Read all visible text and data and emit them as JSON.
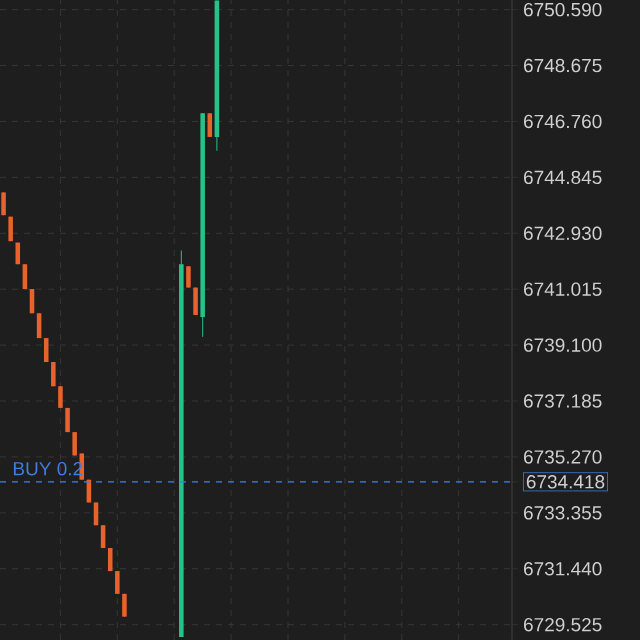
{
  "chart_data": {
    "type": "candlestick",
    "categories": [
      null,
      null,
      null,
      null,
      null,
      null,
      null,
      null,
      null,
      null,
      null,
      null,
      null,
      null,
      null,
      null,
      null,
      null,
      null,
      null,
      null,
      null,
      null,
      null,
      null,
      null,
      null,
      null,
      null,
      null,
      null,
      null,
      null,
      null,
      null,
      null,
      null,
      null,
      null,
      null,
      null,
      null,
      null,
      null,
      null,
      null,
      null,
      null,
      null,
      null,
      null,
      null,
      null,
      null,
      null,
      null,
      null,
      null,
      null,
      null,
      null,
      null,
      null,
      null,
      null,
      null,
      null,
      null,
      null,
      null,
      null,
      null
    ],
    "ohlc": [
      [
        6744.33,
        6744.33,
        6743.55,
        6743.55
      ],
      [
        6743.5,
        6743.5,
        6742.66,
        6742.66
      ],
      [
        6742.61,
        6742.61,
        6741.87,
        6741.87
      ],
      [
        6741.87,
        6741.87,
        6741.02,
        6741.02
      ],
      [
        6741.02,
        6741.02,
        6740.19,
        6740.19
      ],
      [
        6740.19,
        6740.19,
        6739.34,
        6739.34
      ],
      [
        6739.34,
        6739.34,
        6738.52,
        6738.52
      ],
      [
        6738.52,
        6738.52,
        6737.69,
        6737.69
      ],
      [
        6737.69,
        6737.69,
        6736.95,
        6736.95
      ],
      [
        6736.95,
        6736.95,
        6736.12,
        6736.12
      ],
      [
        6736.12,
        6736.12,
        6735.32,
        6735.32
      ],
      [
        6735.39,
        6735.39,
        6734.49,
        6734.49
      ],
      [
        6734.49,
        6734.49,
        6733.71,
        6733.71
      ],
      [
        6733.71,
        6733.71,
        6732.93,
        6732.93
      ],
      [
        6732.93,
        6732.93,
        6732.15,
        6732.15
      ],
      [
        6732.15,
        6732.15,
        6731.36,
        6731.36
      ],
      [
        6731.36,
        6731.36,
        6730.58,
        6730.58
      ],
      [
        6730.58,
        6730.58,
        6729.8,
        6729.8
      ],
      null,
      null,
      null,
      null,
      null,
      null,
      null,
      [
        6729.1,
        6742.34,
        6729.1,
        6741.87
      ],
      [
        6741.8,
        6741.8,
        6741.07,
        6741.07
      ],
      [
        6741.07,
        6741.07,
        6740.13,
        6740.13
      ],
      [
        6740.06,
        6747.04,
        6739.39,
        6747.04
      ],
      [
        6747.04,
        6747.04,
        6746.23,
        6746.23
      ],
      [
        6746.23,
        6750.9,
        6745.76,
        6750.9
      ],
      null,
      null,
      null,
      null,
      null,
      null,
      null,
      null,
      null,
      null,
      null,
      null,
      null,
      null,
      null,
      null,
      null,
      null,
      null,
      null,
      null,
      null,
      null,
      null,
      null,
      null,
      null,
      null,
      null,
      null,
      null,
      null,
      null,
      null,
      null,
      null,
      null,
      null,
      null,
      null,
      null
    ],
    "colors": [
      "#e8622c",
      "#e8622c",
      "#e8622c",
      "#e8622c",
      "#e8622c",
      "#e8622c",
      "#e8622c",
      "#e8622c",
      "#e8622c",
      "#e8622c",
      "#e8622c",
      "#e8622c",
      "#e8622c",
      "#e8622c",
      "#e8622c",
      "#e8622c",
      "#e8622c",
      "#e8622c",
      null,
      null,
      null,
      null,
      null,
      null,
      null,
      "#26c28a",
      "#e8622c",
      "#e8622c",
      "#26c28a",
      "#e8622c",
      "#26c28a",
      null,
      null,
      null,
      null,
      null,
      null,
      null,
      null,
      null,
      null,
      null,
      null,
      null,
      null,
      null,
      null,
      null,
      null,
      null,
      null,
      null,
      null,
      null,
      null,
      null,
      null,
      null,
      null,
      null,
      null,
      null,
      null,
      null,
      null,
      null,
      null,
      null,
      null,
      null,
      null,
      null
    ],
    "ylim": [
      6729.0,
      6750.92
    ],
    "yticks": [
      {
        "value": 6729.525,
        "label": "6729.525"
      },
      {
        "value": 6731.44,
        "label": "6731.440"
      },
      {
        "value": 6733.355,
        "label": "6733.355"
      },
      {
        "value": 6734.418,
        "label": "6734.418"
      },
      {
        "value": 6735.27,
        "label": "6735.270"
      },
      {
        "value": 6737.185,
        "label": "6737.185"
      },
      {
        "value": 6739.1,
        "label": "6739.100"
      },
      {
        "value": 6741.015,
        "label": "6741.015"
      },
      {
        "value": 6742.93,
        "label": "6742.930"
      },
      {
        "value": 6744.845,
        "label": "6744.845"
      },
      {
        "value": 6746.76,
        "label": "6746.760"
      },
      {
        "value": 6748.675,
        "label": "6748.675"
      },
      {
        "value": 6750.59,
        "label": "6750.590"
      }
    ],
    "grid": true,
    "tick_labels": "y",
    "ref_lines": [
      {
        "axis": "y",
        "value": 6734.418,
        "label": "BUY 0.2",
        "color": "#3f7de0",
        "line_style": "dashed"
      }
    ]
  }
}
